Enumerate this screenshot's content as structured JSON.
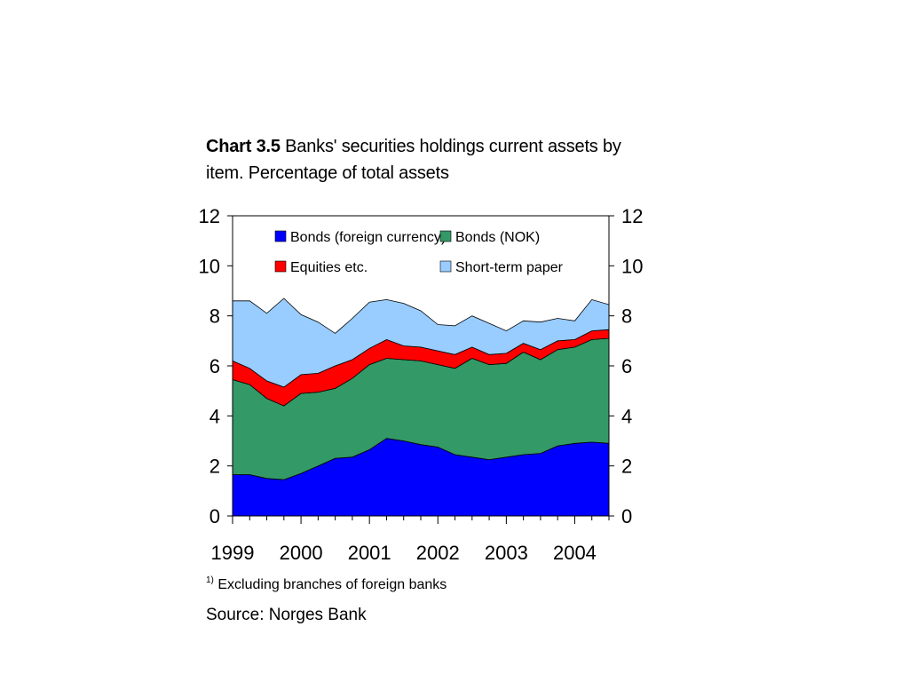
{
  "title": {
    "prefix": "Chart 3.5",
    "text": "Banks' securities holdings current assets by item. Percentage of total assets"
  },
  "footnote": {
    "marker": "1)",
    "text": "Excluding branches of  foreign banks"
  },
  "source": "Source: Norges Bank",
  "chart_data": {
    "type": "area",
    "stacked": true,
    "x": [
      "1999-Q1",
      "1999-Q2",
      "1999-Q3",
      "1999-Q4",
      "2000-Q1",
      "2000-Q2",
      "2000-Q3",
      "2000-Q4",
      "2001-Q1",
      "2001-Q2",
      "2001-Q3",
      "2001-Q4",
      "2002-Q1",
      "2002-Q2",
      "2002-Q3",
      "2002-Q4",
      "2003-Q1",
      "2003-Q2",
      "2003-Q3",
      "2003-Q4",
      "2004-Q1",
      "2004-Q2",
      "2004-Q3"
    ],
    "x_tick_labels": [
      "1999",
      "2000",
      "2001",
      "2002",
      "2003",
      "2004"
    ],
    "ylim": [
      0,
      12
    ],
    "y_ticks": [
      0,
      2,
      4,
      6,
      8,
      10,
      12
    ],
    "y_ticks_both_sides": true,
    "grid": false,
    "legend_position": "top",
    "series": [
      {
        "name": "Bonds (foreign currency)",
        "color": "#0000ff",
        "values": [
          1.65,
          1.65,
          1.5,
          1.45,
          1.7,
          2.0,
          2.3,
          2.35,
          2.65,
          3.1,
          3.0,
          2.85,
          2.75,
          2.45,
          2.35,
          2.25,
          2.35,
          2.45,
          2.5,
          2.8,
          2.9,
          2.95,
          2.9
        ]
      },
      {
        "name": "Bonds (NOK)",
        "color": "#339966",
        "values": [
          3.8,
          3.6,
          3.2,
          2.95,
          3.2,
          2.95,
          2.8,
          3.15,
          3.4,
          3.2,
          3.25,
          3.35,
          3.3,
          3.45,
          3.95,
          3.8,
          3.75,
          4.1,
          3.75,
          3.85,
          3.85,
          4.1,
          4.2
        ]
      },
      {
        "name": "Equities etc.",
        "color": "#ff0000",
        "values": [
          0.75,
          0.65,
          0.7,
          0.75,
          0.75,
          0.75,
          0.9,
          0.75,
          0.65,
          0.75,
          0.55,
          0.55,
          0.55,
          0.55,
          0.45,
          0.4,
          0.4,
          0.35,
          0.4,
          0.35,
          0.3,
          0.35,
          0.35
        ]
      },
      {
        "name": "Short-term paper",
        "color": "#99ccff",
        "values": [
          2.4,
          2.7,
          2.7,
          3.55,
          2.4,
          2.05,
          1.3,
          1.65,
          1.85,
          1.6,
          1.7,
          1.45,
          1.05,
          1.15,
          1.25,
          1.25,
          0.9,
          0.9,
          1.1,
          0.9,
          0.75,
          1.25,
          1.0
        ]
      }
    ]
  }
}
